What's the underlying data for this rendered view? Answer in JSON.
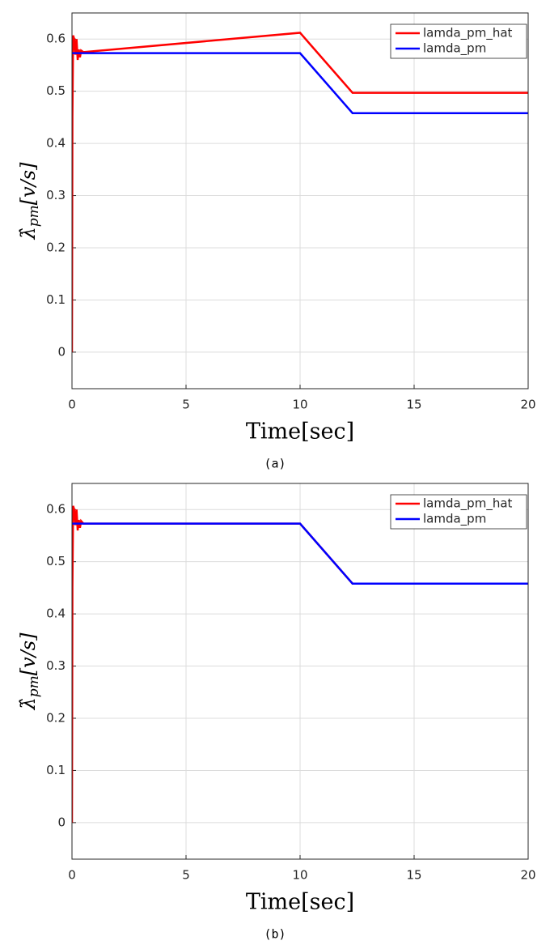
{
  "chart_data": [
    {
      "type": "line",
      "caption": "(a)",
      "x_label": "Time[sec]",
      "y_label": {
        "symbol": "λ̂",
        "subscript": "pm",
        "unit": "[v/s]"
      },
      "xlim": [
        0,
        20
      ],
      "xticks": [
        0,
        5,
        10,
        15,
        20
      ],
      "ylim": [
        -0.07,
        0.65
      ],
      "yticks": [
        0,
        0.1,
        0.2,
        0.3,
        0.4,
        0.5,
        0.6
      ],
      "grid": true,
      "legend": "top-right",
      "x": [
        0,
        0.02,
        0.05,
        0.1,
        0.15,
        0.2,
        0.25,
        0.3,
        0.35,
        0.4,
        0.5,
        10,
        12.3,
        20
      ],
      "series": [
        {
          "name": "lamda_pm_hat",
          "color": "#ff0000",
          "values": [
            0,
            0.45,
            0.607,
            0.6,
            0.57,
            0.6,
            0.56,
            0.58,
            0.565,
            0.578,
            0.575,
            0.612,
            0.497,
            0.497
          ]
        },
        {
          "name": "lamda_pm",
          "color": "#0000ff",
          "values": [
            0.573,
            0.573,
            0.573,
            0.573,
            0.573,
            0.573,
            0.573,
            0.573,
            0.573,
            0.573,
            0.573,
            0.573,
            0.458,
            0.458
          ]
        }
      ]
    },
    {
      "type": "line",
      "caption": "(b)",
      "x_label": "Time[sec]",
      "y_label": {
        "symbol": "λ̂",
        "subscript": "pm",
        "unit": "[v/s]"
      },
      "xlim": [
        0,
        20
      ],
      "xticks": [
        0,
        5,
        10,
        15,
        20
      ],
      "ylim": [
        -0.07,
        0.65
      ],
      "yticks": [
        0,
        0.1,
        0.2,
        0.3,
        0.4,
        0.5,
        0.6
      ],
      "grid": true,
      "legend": "top-right",
      "x": [
        0,
        0.02,
        0.05,
        0.1,
        0.15,
        0.2,
        0.25,
        0.3,
        0.35,
        0.4,
        0.5,
        10,
        12.3,
        20
      ],
      "series": [
        {
          "name": "lamda_pm_hat",
          "color": "#ff0000",
          "values": [
            0,
            0.45,
            0.607,
            0.6,
            0.57,
            0.6,
            0.56,
            0.58,
            0.565,
            0.578,
            0.573,
            0.573,
            0.458,
            0.458
          ]
        },
        {
          "name": "lamda_pm",
          "color": "#0000ff",
          "values": [
            0.573,
            0.573,
            0.573,
            0.573,
            0.573,
            0.573,
            0.573,
            0.573,
            0.573,
            0.573,
            0.573,
            0.573,
            0.458,
            0.458
          ]
        }
      ]
    }
  ]
}
